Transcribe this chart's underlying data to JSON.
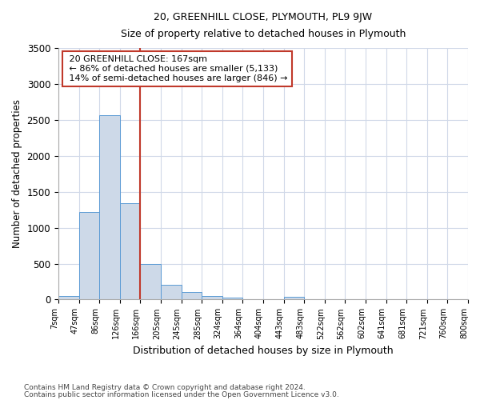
{
  "title": "20, GREENHILL CLOSE, PLYMOUTH, PL9 9JW",
  "subtitle": "Size of property relative to detached houses in Plymouth",
  "xlabel": "Distribution of detached houses by size in Plymouth",
  "ylabel": "Number of detached properties",
  "footnote1": "Contains HM Land Registry data © Crown copyright and database right 2024.",
  "footnote2": "Contains public sector information licensed under the Open Government Licence v3.0.",
  "annotation_line1": "20 GREENHILL CLOSE: 167sqm",
  "annotation_line2": "← 86% of detached houses are smaller (5,133)",
  "annotation_line3": "14% of semi-detached houses are larger (846) →",
  "property_size_idx": 4,
  "bar_edges": [
    7,
    47,
    86,
    126,
    166,
    205,
    245,
    285,
    324,
    364,
    404,
    443,
    483,
    522,
    562,
    602,
    641,
    681,
    721,
    760,
    800
  ],
  "bar_heights": [
    50,
    1220,
    2560,
    1340,
    490,
    200,
    100,
    50,
    30,
    5,
    5,
    40,
    0,
    0,
    0,
    0,
    0,
    0,
    0,
    0
  ],
  "tick_labels": [
    "7sqm",
    "47sqm",
    "86sqm",
    "126sqm",
    "166sqm",
    "205sqm",
    "245sqm",
    "285sqm",
    "324sqm",
    "364sqm",
    "404sqm",
    "443sqm",
    "483sqm",
    "522sqm",
    "562sqm",
    "602sqm",
    "641sqm",
    "681sqm",
    "721sqm",
    "760sqm",
    "800sqm"
  ],
  "bar_color": "#cdd9e8",
  "bar_edge_color": "#5b9bd5",
  "vline_color": "#c0392b",
  "box_edge_color": "#c0392b",
  "grid_color": "#d0d8e8",
  "ylim": [
    0,
    3500
  ],
  "yticks": [
    0,
    500,
    1000,
    1500,
    2000,
    2500,
    3000,
    3500
  ],
  "bg_color": "#ffffff"
}
